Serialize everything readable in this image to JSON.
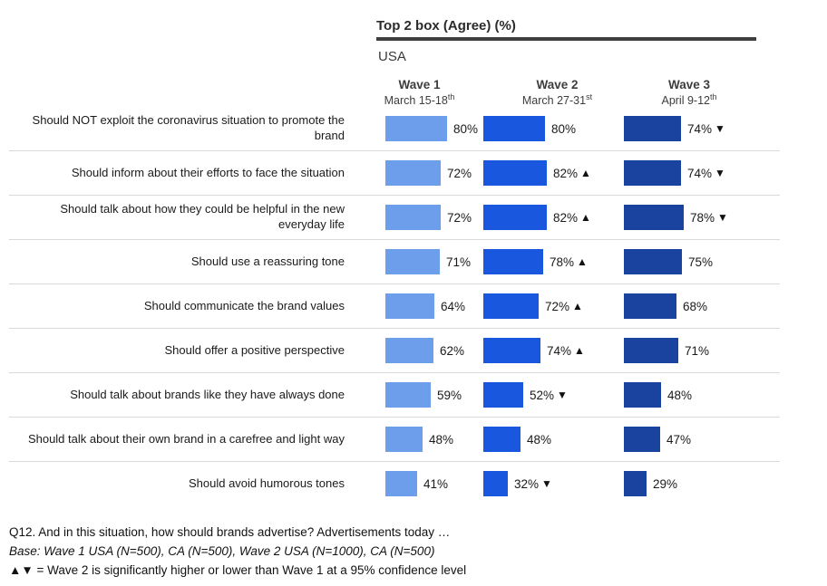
{
  "header": {
    "title": "Top 2 box (Agree) (%)",
    "region": "USA",
    "waves": [
      {
        "label": "Wave 1",
        "date": "March 15-18",
        "date_sup": "th"
      },
      {
        "label": "Wave 2",
        "date": "March 27-31",
        "date_sup": "st"
      },
      {
        "label": "Wave 3",
        "date": "April 9-12",
        "date_sup": "th"
      }
    ]
  },
  "chart_data": {
    "type": "bar",
    "orientation": "horizontal",
    "title": "Top 2 box (Agree) (%)",
    "region": "USA",
    "value_suffix": "%",
    "xlim": [
      0,
      100
    ],
    "categories": [
      "Should NOT exploit the coronavirus situation to promote the brand",
      "Should inform about their efforts to face the situation",
      "Should talk about how they could be helpful in the new everyday life",
      "Should use a reassuring tone",
      "Should communicate the brand values",
      "Should offer a positive perspective",
      "Should talk about brands like they have always done",
      "Should talk about their own brand in a carefree and light way",
      "Should avoid humorous tones"
    ],
    "series": [
      {
        "name": "Wave 1",
        "date": "March 15-18th",
        "color": "#6D9EEB",
        "values": [
          80,
          72,
          72,
          71,
          64,
          62,
          59,
          48,
          41
        ],
        "markers": [
          "",
          "",
          "",
          "",
          "",
          "",
          "",
          "",
          ""
        ]
      },
      {
        "name": "Wave 2",
        "date": "March 27-31st",
        "color": "#1A57DF",
        "values": [
          80,
          82,
          82,
          78,
          72,
          74,
          52,
          48,
          32
        ],
        "markers": [
          "",
          "up",
          "up",
          "up",
          "up",
          "up",
          "down",
          "",
          "down"
        ]
      },
      {
        "name": "Wave 3",
        "date": "April 9-12th",
        "color": "#1A429F",
        "values": [
          74,
          74,
          78,
          75,
          68,
          71,
          48,
          47,
          29
        ],
        "markers": [
          "down",
          "down",
          "down",
          "",
          "",
          "",
          "",
          "",
          ""
        ]
      }
    ]
  },
  "markers": {
    "up": "▲",
    "down": "▼"
  },
  "colors": {
    "wave1": "#6D9EEB",
    "wave2": "#1A57DF",
    "wave3": "#1A429F",
    "title_rule": "#3F3F3F",
    "separator": "#D9D9D9",
    "marker": "#111111"
  },
  "footer": {
    "question": "Q12. And in this situation, how should brands advertise? Advertisements today …",
    "base": "Base: Wave 1 USA (N=500), CA (N=500), Wave 2 USA (N=1000), CA (N=500)",
    "significance": "▲▼ = Wave 2 is significantly higher or lower than Wave 1 at a 95% confidence level"
  }
}
